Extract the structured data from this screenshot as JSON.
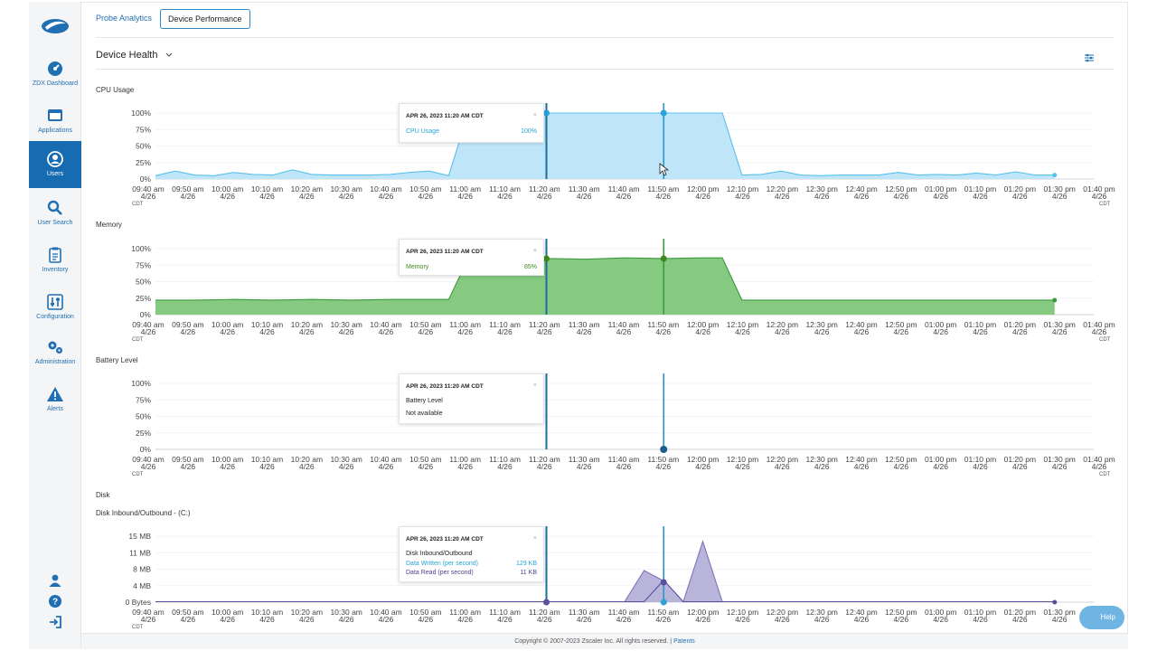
{
  "sidebar": {
    "items": [
      {
        "label": "ZDX Dashboard",
        "icon": "dashboard-gauge-icon"
      },
      {
        "label": "Applications",
        "icon": "applications-window-icon"
      },
      {
        "label": "Users",
        "icon": "user-circle-icon"
      },
      {
        "label": "User Search",
        "icon": "search-icon"
      },
      {
        "label": "Inventory",
        "icon": "clipboard-icon"
      },
      {
        "label": "Configuration",
        "icon": "sliders-icon"
      },
      {
        "label": "Administration",
        "icon": "gears-icon"
      },
      {
        "label": "Alerts",
        "icon": "warning-triangle-icon"
      }
    ],
    "active_index": 2,
    "bottom_icons": [
      "user-icon",
      "help-icon",
      "sign-out-icon"
    ]
  },
  "tabs": [
    {
      "label": "Probe Analytics",
      "selected": false
    },
    {
      "label": "Device Performance",
      "selected": true
    }
  ],
  "section": {
    "title": "Device Health"
  },
  "colors": {
    "accent": "#1f6fb2",
    "cpu": "#5bc0eb",
    "cpu_fill": "#bfe6f8",
    "memory": "#3d9a3d",
    "memory_fill": "#86c981",
    "disk_written": "#29a3d8",
    "disk_read": "#5a4e9e",
    "disk_fill": "#b9b4da",
    "cursor": "#1a6ea0"
  },
  "x_axis": {
    "ticks": [
      "09:40 am",
      "09:50 am",
      "10:00 am",
      "10:10 am",
      "10:20 am",
      "10:30 am",
      "10:40 am",
      "10:50 am",
      "11:00 am",
      "11:10 am",
      "11:20 am",
      "11:30 am",
      "11:40 am",
      "11:50 am",
      "12:00 pm",
      "12:10 pm",
      "12:20 pm",
      "12:30 pm",
      "12:40 pm",
      "12:50 pm",
      "01:00 pm",
      "01:10 pm",
      "01:20 pm",
      "01:30 pm",
      "01:40 pm"
    ],
    "date": "4/26",
    "timezone": "CDT"
  },
  "charts": [
    {
      "title": "CPU Usage",
      "y_ticks": [
        "100%",
        "75%",
        "50%",
        "25%",
        "0%"
      ]
    },
    {
      "title": "Memory",
      "y_ticks": [
        "100%",
        "75%",
        "50%",
        "25%",
        "0%"
      ]
    },
    {
      "title": "Battery Level",
      "y_ticks": [
        "100%",
        "75%",
        "50%",
        "25%",
        "0%"
      ]
    },
    {
      "title": "Disk",
      "subtitle": "Disk Inbound/Outbound - (C:)",
      "y_ticks": [
        "15 MB",
        "11 MB",
        "8 MB",
        "4 MB",
        "0 Bytes"
      ]
    }
  ],
  "tooltips": {
    "cpu": {
      "header": "APR 26, 2023 11:20 AM CDT",
      "label": "CPU Usage",
      "value": "100%",
      "close": "×"
    },
    "memory": {
      "header": "APR 26, 2023 11:20 AM CDT",
      "label": "Memory",
      "value": "85%",
      "close": "×"
    },
    "battery": {
      "header": "APR 26, 2023 11:20 AM CDT",
      "label": "Battery Level",
      "value": "Not available",
      "close": "×"
    },
    "disk": {
      "header": "APR 26, 2023 11:20 AM CDT",
      "title": "Disk Inbound/Outbound",
      "written_label": "Data Written (per second)",
      "written_value": "129 KB",
      "read_label": "Data Read (per second)",
      "read_value": "11 KB",
      "close": "×"
    }
  },
  "chart_data": [
    {
      "type": "area",
      "title": "CPU Usage",
      "ylim": [
        0,
        100
      ],
      "y_unit": "%",
      "x": [
        "09:40",
        "09:45",
        "09:50",
        "09:55",
        "10:00",
        "10:05",
        "10:10",
        "10:15",
        "10:20",
        "10:25",
        "10:30",
        "10:35",
        "10:40",
        "10:45",
        "10:50",
        "10:55",
        "11:00",
        "11:05",
        "11:10",
        "11:15",
        "11:20",
        "11:25",
        "11:30",
        "11:35",
        "11:40",
        "11:45",
        "11:50",
        "11:55",
        "12:00",
        "12:05",
        "12:10",
        "12:15",
        "12:20",
        "12:25",
        "12:30",
        "12:35",
        "12:40",
        "12:45",
        "12:50",
        "12:55",
        "13:00",
        "13:05",
        "13:10",
        "13:15",
        "13:20",
        "13:25",
        "13:30"
      ],
      "values": [
        5,
        12,
        6,
        5,
        10,
        7,
        6,
        14,
        7,
        6,
        6,
        6,
        7,
        10,
        12,
        5,
        100,
        100,
        100,
        100,
        100,
        100,
        100,
        100,
        100,
        100,
        100,
        100,
        100,
        100,
        6,
        7,
        12,
        6,
        5,
        6,
        6,
        6,
        10,
        6,
        7,
        6,
        9,
        6,
        11,
        6,
        6
      ]
    },
    {
      "type": "area",
      "title": "Memory",
      "ylim": [
        0,
        100
      ],
      "y_unit": "%",
      "x": [
        "09:40",
        "09:50",
        "10:00",
        "10:10",
        "10:20",
        "10:30",
        "10:40",
        "10:50",
        "10:55",
        "11:00",
        "11:10",
        "11:20",
        "11:30",
        "11:40",
        "11:50",
        "12:00",
        "12:05",
        "12:10",
        "12:20",
        "12:30",
        "12:40",
        "12:50",
        "13:00",
        "13:10",
        "13:20",
        "13:30"
      ],
      "values": [
        22,
        22,
        23,
        22,
        23,
        22,
        23,
        23,
        23,
        85,
        85,
        85,
        84,
        86,
        85,
        86,
        86,
        22,
        22,
        22,
        22,
        22,
        22,
        22,
        22,
        22
      ]
    },
    {
      "type": "line",
      "title": "Battery Level",
      "ylim": [
        0,
        100
      ],
      "y_unit": "%",
      "note_value": "Not available",
      "x": [],
      "values": []
    },
    {
      "type": "area",
      "title": "Disk Inbound/Outbound - (C:)",
      "y_ticks": [
        "15 MB",
        "11 MB",
        "8 MB",
        "4 MB",
        "0 Bytes"
      ],
      "ylim": [
        0,
        15
      ],
      "y_unit": "MB",
      "x": [
        "09:40",
        "09:50",
        "10:00",
        "10:10",
        "10:20",
        "10:30",
        "10:40",
        "10:50",
        "11:00",
        "11:10",
        "11:20",
        "11:30",
        "11:40",
        "11:45",
        "11:50",
        "11:55",
        "12:00",
        "12:05",
        "12:10",
        "12:20",
        "12:30",
        "12:40",
        "12:50",
        "13:00",
        "13:10",
        "13:20",
        "13:30"
      ],
      "series": [
        {
          "name": "Data Written (per second)",
          "values": [
            0.1,
            0.1,
            0.1,
            0.1,
            0.1,
            0.1,
            0.1,
            0.1,
            0.1,
            0.1,
            0.1,
            0.1,
            0.1,
            7.2,
            4.8,
            0.1,
            13.8,
            0.1,
            0.1,
            0.1,
            0.1,
            0.1,
            0.1,
            0.1,
            0.1,
            0.1,
            0.1
          ]
        },
        {
          "name": "Data Read (per second)",
          "values": [
            0.1,
            0.1,
            0.1,
            0.1,
            0.1,
            0.1,
            0.1,
            0.1,
            0.1,
            0.1,
            0.1,
            0.1,
            0.1,
            0.1,
            5.0,
            0.1,
            0.1,
            0.1,
            0.1,
            0.1,
            0.1,
            0.1,
            0.1,
            0.1,
            0.1,
            0.1,
            0.1
          ]
        }
      ]
    }
  ],
  "footer": {
    "copyright": "Copyright © 2007-2023 Zscaler Inc. All rights reserved.",
    "separator": "|",
    "link": "Patents"
  },
  "help": {
    "label": "Help"
  }
}
